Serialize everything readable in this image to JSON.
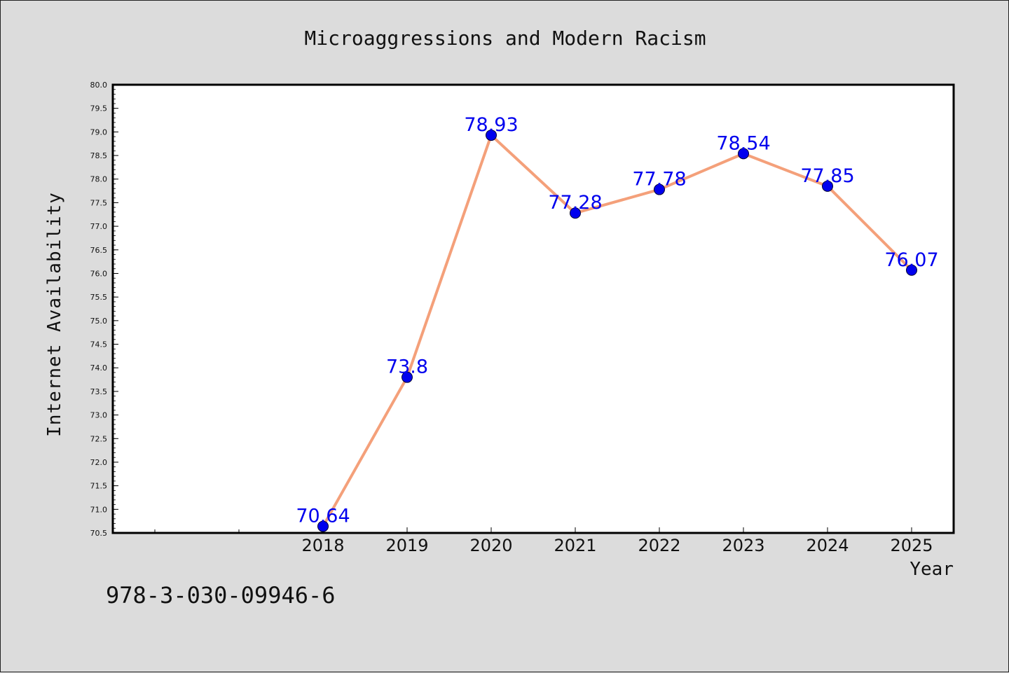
{
  "footer": {
    "code": "978-3-030-09946-6"
  },
  "chart_data": {
    "type": "line",
    "title": "Microaggressions and Modern Racism",
    "xlabel": "Year",
    "ylabel": "Internet Availability",
    "categories": [
      "2018",
      "2019",
      "2020",
      "2021",
      "2022",
      "2023",
      "2024",
      "2025"
    ],
    "values": [
      70.64,
      73.8,
      78.93,
      77.28,
      77.78,
      78.54,
      77.85,
      76.07
    ],
    "data_labels": [
      "70.64",
      "73.8",
      "78.93",
      "77.28",
      "77.78",
      "78.54",
      "77.85",
      "76.07"
    ],
    "ylim": [
      70.5,
      80.0
    ],
    "y_ticks": [
      "70.5",
      "71.0",
      "71.5",
      "72.0",
      "72.5",
      "73.0",
      "73.5",
      "74.0",
      "74.5",
      "75.0",
      "75.5",
      "76.0",
      "76.5",
      "77.0",
      "77.5",
      "78.0",
      "78.5",
      "79.0",
      "79.5",
      "80.0"
    ],
    "grid": false,
    "colors": {
      "line": "#f4a07a",
      "marker": "#0000ee",
      "label": "#0000ee",
      "plot_bg": "#ffffff",
      "page_bg": "#dcdcdc"
    }
  }
}
